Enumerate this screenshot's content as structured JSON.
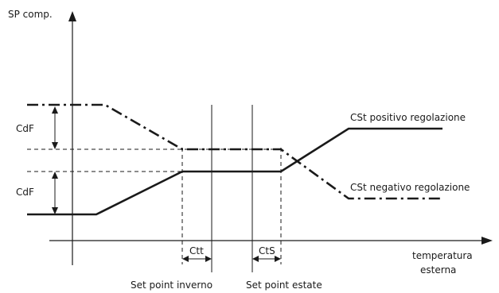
{
  "axes": {
    "y_label": "SP comp.",
    "x_label_line1": "temperatura",
    "x_label_line2": "esterna"
  },
  "curves": {
    "positive_label": "CSt positivo regolazione",
    "negative_label": "CSt negativo regolazione"
  },
  "dimensions": {
    "cdf_upper": "CdF",
    "cdf_lower": "CdF",
    "ctt": "Ctt",
    "cts": "CtS"
  },
  "setpoints": {
    "winter": "Set point inverno",
    "summer": "Set point estate"
  }
}
